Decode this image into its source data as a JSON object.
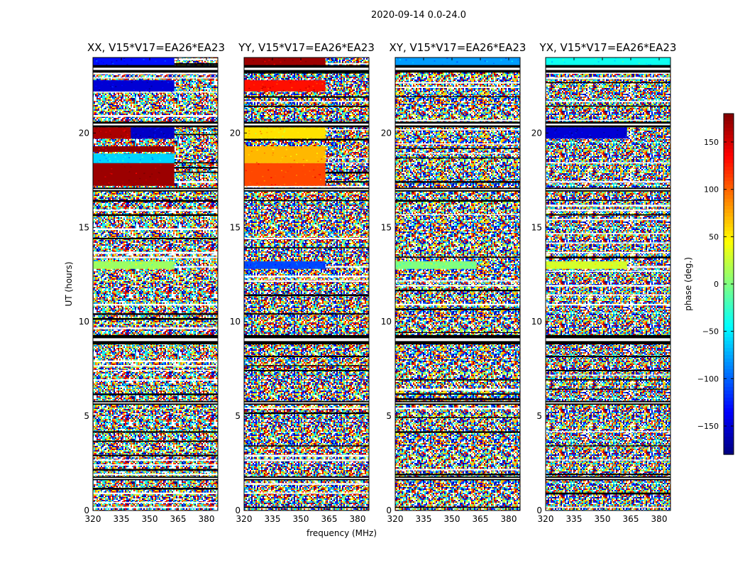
{
  "suptitle": "2020-09-14 0.0-24.0",
  "chart_data": {
    "type": "heatmap",
    "panels": [
      {
        "title": "XX, V15*V17=EA26*EA23",
        "polarization": "XX"
      },
      {
        "title": "YY, V15*V17=EA26*EA23",
        "polarization": "YY"
      },
      {
        "title": "XY, V15*V17=EA26*EA23",
        "polarization": "XY"
      },
      {
        "title": "YX, V15*V17=EA26*EA23",
        "polarization": "YX"
      }
    ],
    "xlabel": "frequency (MHz)",
    "ylabel": "UT (hours)",
    "xlim": [
      320,
      386
    ],
    "ylim": [
      0,
      24
    ],
    "xticks": [
      320,
      335,
      350,
      365,
      380
    ],
    "yticks": [
      0,
      5,
      10,
      15,
      20
    ],
    "colorbar": {
      "label": "phase (deg.)",
      "range": [
        -180,
        180
      ],
      "ticks": [
        150,
        100,
        50,
        0,
        -50,
        -100,
        -150
      ],
      "tick_labels": [
        "150",
        "100",
        "50",
        "0",
        "−50",
        "−100",
        "−150"
      ],
      "colormap": "jet"
    },
    "blank_bands_ut": [
      [
        23.2,
        23.6
      ],
      [
        20.3,
        20.6
      ],
      [
        16.9,
        17.1
      ],
      [
        8.8,
        9.3
      ],
      [
        5.6,
        5.8
      ],
      [
        1.6,
        1.8
      ]
    ],
    "coherent_bands": {
      "XX": [
        {
          "ut": [
            23.3,
            24.0
          ],
          "freq": [
            320,
            363
          ],
          "phase": -130
        },
        {
          "ut": [
            22.2,
            22.8
          ],
          "freq": [
            320,
            363
          ],
          "phase": -150
        },
        {
          "ut": [
            19.7,
            20.3
          ],
          "freq": [
            320,
            363
          ],
          "phase": 165
        },
        {
          "ut": [
            19.7,
            20.3
          ],
          "freq": [
            340,
            363
          ],
          "phase": -155
        },
        {
          "ut": [
            19.0,
            19.3
          ],
          "freq": [
            320,
            363
          ],
          "phase": 175
        },
        {
          "ut": [
            18.4,
            18.9
          ],
          "freq": [
            320,
            363
          ],
          "phase": -60
        },
        {
          "ut": [
            17.2,
            18.4
          ],
          "freq": [
            320,
            363
          ],
          "phase": 170
        },
        {
          "ut": [
            12.8,
            13.2
          ],
          "freq": [
            320,
            363
          ],
          "phase": 10
        }
      ],
      "YY": [
        {
          "ut": [
            23.3,
            24.0
          ],
          "freq": [
            320,
            363
          ],
          "phase": 170
        },
        {
          "ut": [
            22.2,
            22.8
          ],
          "freq": [
            320,
            363
          ],
          "phase": 130
        },
        {
          "ut": [
            19.7,
            20.3
          ],
          "freq": [
            320,
            363
          ],
          "phase": 55
        },
        {
          "ut": [
            18.4,
            19.3
          ],
          "freq": [
            320,
            363
          ],
          "phase": 70
        },
        {
          "ut": [
            17.2,
            18.4
          ],
          "freq": [
            320,
            363
          ],
          "phase": 110
        },
        {
          "ut": [
            12.8,
            13.2
          ],
          "freq": [
            320,
            363
          ],
          "phase": -110
        }
      ],
      "XY": [
        {
          "ut": [
            23.3,
            24.0
          ],
          "freq": [
            320,
            386
          ],
          "phase": -80
        },
        {
          "ut": [
            12.8,
            13.2
          ],
          "freq": [
            320,
            363
          ],
          "phase": 0
        }
      ],
      "YX": [
        {
          "ut": [
            23.3,
            24.0
          ],
          "freq": [
            320,
            386
          ],
          "phase": -40
        },
        {
          "ut": [
            19.7,
            20.3
          ],
          "freq": [
            320,
            363
          ],
          "phase": -150
        },
        {
          "ut": [
            12.8,
            13.2
          ],
          "freq": [
            320,
            363
          ],
          "phase": 30
        }
      ]
    }
  }
}
